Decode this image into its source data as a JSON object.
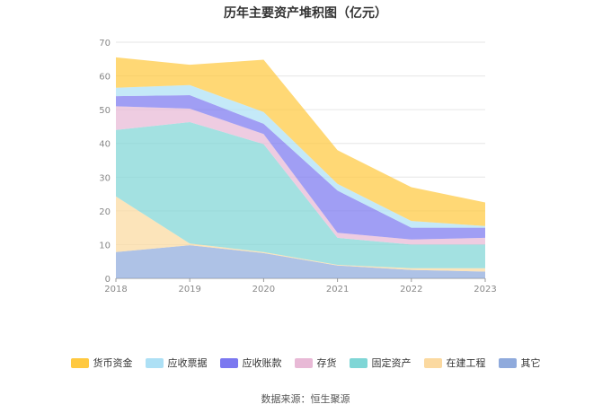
{
  "chart_data": {
    "type": "area",
    "stacked": true,
    "title": "历年主要资产堆积图（亿元）",
    "x": [
      "2018",
      "2019",
      "2020",
      "2021",
      "2022",
      "2023"
    ],
    "ylim": [
      0,
      70
    ],
    "yticks": [
      "0",
      "10",
      "20",
      "30",
      "40",
      "50",
      "60",
      "70"
    ],
    "grid": true,
    "legend_position": "bottom",
    "series": [
      {
        "name": "其它",
        "color": "#8faadc",
        "values": [
          7.8,
          9.8,
          7.5,
          3.8,
          2.5,
          2.0
        ]
      },
      {
        "name": "在建工程",
        "color": "#fbd9a0",
        "values": [
          16.5,
          0.5,
          0.3,
          0.2,
          0.5,
          1.0
        ]
      },
      {
        "name": "固定资产",
        "color": "#7fd6d6",
        "values": [
          19.7,
          36.0,
          32.0,
          8.0,
          7.0,
          7.0
        ]
      },
      {
        "name": "存货",
        "color": "#e8b9d6",
        "values": [
          7.0,
          4.0,
          3.0,
          1.5,
          1.5,
          2.0
        ]
      },
      {
        "name": "应收账款",
        "color": "#7b78f0",
        "values": [
          3.0,
          4.0,
          3.0,
          12.5,
          3.5,
          3.0
        ]
      },
      {
        "name": "应收票据",
        "color": "#ade0f5",
        "values": [
          2.5,
          3.0,
          3.5,
          2.0,
          2.0,
          0.5
        ]
      },
      {
        "name": "货币资金",
        "color": "#ffc940",
        "values": [
          9.0,
          6.0,
          15.5,
          10.0,
          10.0,
          7.0
        ]
      }
    ],
    "legend_order": [
      "货币资金",
      "应收票据",
      "应收账款",
      "存货",
      "固定资产",
      "在建工程",
      "其它"
    ],
    "source": "数据来源：恒生聚源"
  }
}
